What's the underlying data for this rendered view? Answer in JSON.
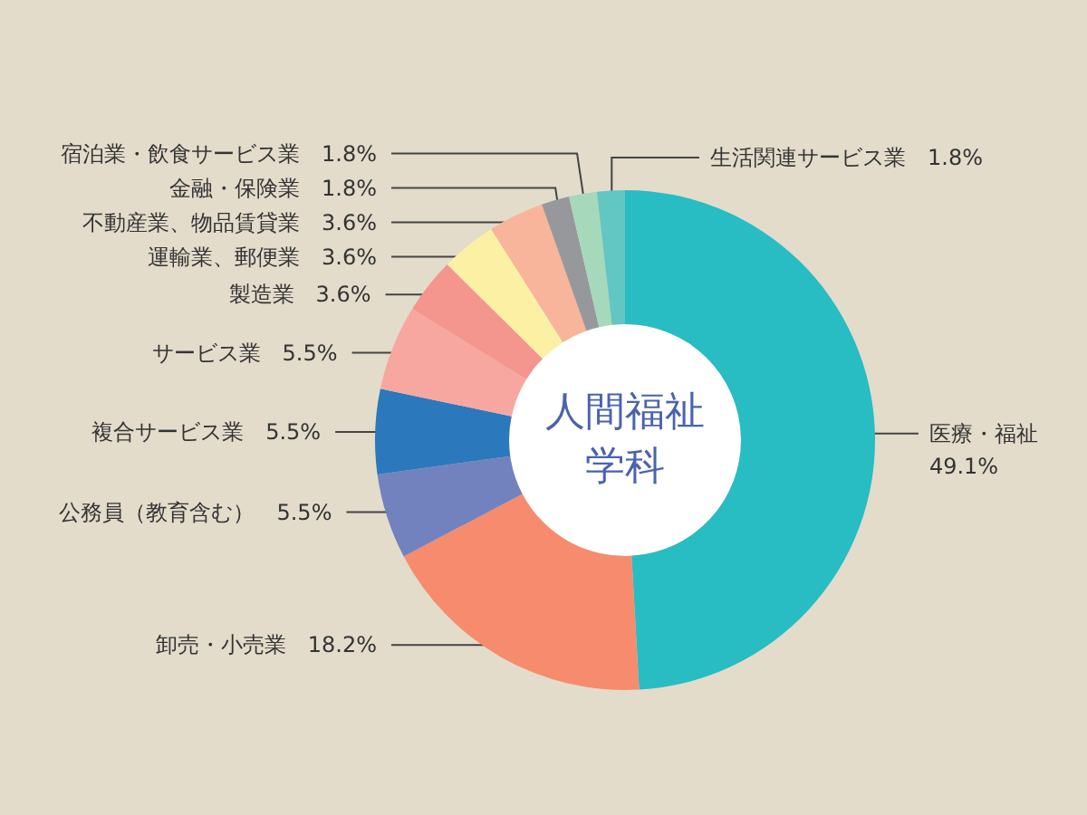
{
  "chart_data": {
    "type": "donut",
    "title": "人間福祉学科",
    "categories": [
      "医療・福祉",
      "卸売・小売業",
      "公務員（教育含む）",
      "複合サービス業",
      "サービス業",
      "製造業",
      "運輸業、郵便業",
      "不動産業、物品賃貸業",
      "金融・保険業",
      "宿泊業・飲食サービス業",
      "生活関連サービス業"
    ],
    "values": [
      49.1,
      18.2,
      5.5,
      5.5,
      5.5,
      3.6,
      3.6,
      3.6,
      1.8,
      1.8,
      1.8
    ],
    "value_labels": [
      "49.1%",
      "18.2%",
      "5.5%",
      "5.5%",
      "5.5%",
      "3.6%",
      "3.6%",
      "3.6%",
      "1.8%",
      "1.8%",
      "1.8%"
    ],
    "colors": [
      "#28bcc3",
      "#f78b6e",
      "#7282bf",
      "#2b78bd",
      "#f7a7a0",
      "#f4958e",
      "#fcf0a5",
      "#f9b59c",
      "#97989b",
      "#a6d9bb",
      "#62c6c3"
    ]
  }
}
